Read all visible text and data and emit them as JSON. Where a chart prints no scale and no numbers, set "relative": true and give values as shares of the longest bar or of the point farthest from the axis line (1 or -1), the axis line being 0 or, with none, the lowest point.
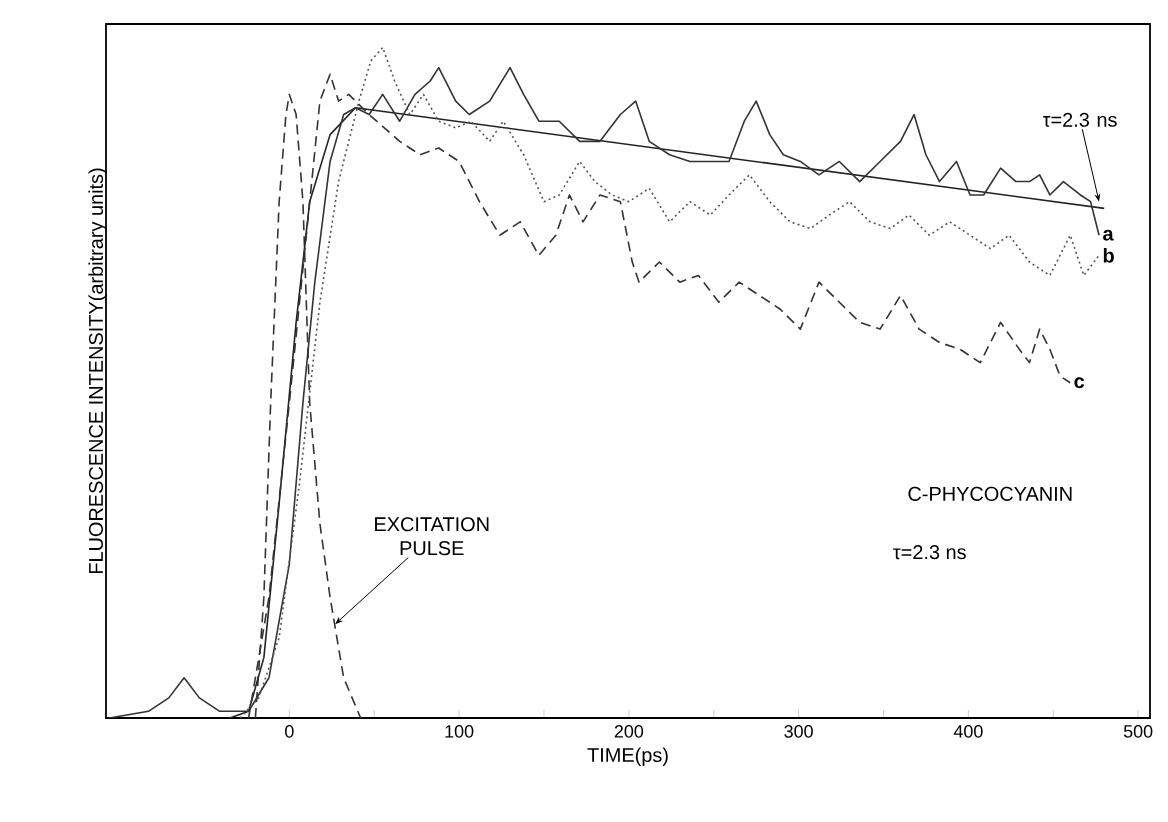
{
  "chart_data": {
    "type": "line",
    "relative": true,
    "xlabel": "TIME(ps)",
    "ylabel": "FLUORESCENCE INTENSITY(arbitrary units)",
    "xlim": [
      -108,
      507
    ],
    "xticks": [
      0,
      {
        "value": 50,
        "label": null
      },
      100,
      {
        "value": 150,
        "label": null
      },
      200,
      {
        "value": 250,
        "label": null
      },
      300,
      {
        "value": 350,
        "label": null
      },
      400,
      {
        "value": 450,
        "label": null
      },
      500
    ],
    "grid": false,
    "annotations": [
      {
        "text": "τ=2.3 ns",
        "x": 477,
        "y": 0.77
      },
      {
        "text": "EXCITATION PULSE",
        "x": 27,
        "y": 0.14
      },
      "C-PHYCOCYANIN",
      "τ=2.3 ns"
    ],
    "series": [
      {
        "color": "#333333",
        "line_style": "dashed",
        "x": [
          -20,
          -15,
          -11,
          -6,
          -2,
          0,
          4,
          8,
          12,
          18,
          24,
          32,
          42
        ],
        "values": [
          0,
          0.18,
          0.47,
          0.77,
          0.9,
          0.93,
          0.9,
          0.77,
          0.47,
          0.29,
          0.18,
          0.06,
          0
        ]
      },
      {
        "color": "#222222",
        "line_style": "solid",
        "x": [
          -35,
          -24,
          -15,
          -6,
          4,
          12,
          24,
          39,
          480
        ],
        "values": [
          0,
          0.01,
          0.09,
          0.32,
          0.59,
          0.77,
          0.87,
          0.91,
          0.76
        ]
      },
      {
        "name": "a",
        "color": "#333333",
        "line_style": "solid",
        "x": [
          -106,
          -83,
          -71,
          -62,
          -53,
          -41,
          -24,
          -12,
          0,
          8,
          15,
          24,
          32,
          39,
          47,
          55,
          65,
          74,
          83,
          88,
          98,
          106,
          118,
          130,
          138,
          147,
          159,
          171,
          183,
          195,
          204,
          212,
          224,
          236,
          248,
          259,
          268,
          275,
          283,
          291,
          301,
          312,
          324,
          336,
          348,
          360,
          368,
          375,
          383,
          393,
          401,
          409,
          419,
          428,
          436,
          442,
          448,
          456,
          466,
          472,
          477
        ],
        "values": [
          0,
          0.01,
          0.03,
          0.06,
          0.03,
          0.01,
          0.01,
          0.06,
          0.23,
          0.47,
          0.65,
          0.83,
          0.9,
          0.91,
          0.9,
          0.93,
          0.89,
          0.93,
          0.95,
          0.97,
          0.92,
          0.9,
          0.92,
          0.97,
          0.93,
          0.89,
          0.89,
          0.86,
          0.86,
          0.9,
          0.92,
          0.86,
          0.84,
          0.83,
          0.83,
          0.83,
          0.89,
          0.92,
          0.87,
          0.84,
          0.83,
          0.81,
          0.83,
          0.8,
          0.83,
          0.86,
          0.9,
          0.84,
          0.8,
          0.83,
          0.78,
          0.78,
          0.82,
          0.8,
          0.8,
          0.81,
          0.78,
          0.8,
          0.78,
          0.77,
          0.72
        ]
      },
      {
        "name": "b",
        "color": "#555555",
        "line_style": "dotted",
        "x": [
          -29,
          -18,
          -6,
          6,
          18,
          29,
          41,
          48,
          55,
          62,
          71,
          79,
          88,
          98,
          107,
          118,
          126,
          138,
          150,
          159,
          171,
          180,
          190,
          200,
          212,
          224,
          236,
          248,
          259,
          271,
          283,
          295,
          307,
          318,
          330,
          342,
          354,
          365,
          377,
          389,
          401,
          413,
          424,
          436,
          448,
          460,
          468,
          477
        ],
        "values": [
          0,
          0.03,
          0.12,
          0.35,
          0.62,
          0.8,
          0.92,
          0.98,
          1.0,
          0.95,
          0.9,
          0.93,
          0.89,
          0.88,
          0.89,
          0.86,
          0.89,
          0.84,
          0.77,
          0.78,
          0.83,
          0.8,
          0.78,
          0.77,
          0.79,
          0.74,
          0.77,
          0.75,
          0.78,
          0.81,
          0.77,
          0.74,
          0.73,
          0.75,
          0.77,
          0.74,
          0.73,
          0.75,
          0.72,
          0.74,
          0.72,
          0.7,
          0.72,
          0.68,
          0.66,
          0.72,
          0.66,
          0.69
        ]
      },
      {
        "name": "c",
        "color": "#333333",
        "line_style": "dashed",
        "x": [
          -24,
          -12,
          0,
          12,
          18,
          24,
          29,
          35,
          47,
          65,
          77,
          88,
          100,
          112,
          124,
          136,
          147,
          157,
          165,
          173,
          183,
          195,
          202,
          206,
          218,
          230,
          241,
          253,
          265,
          277,
          289,
          301,
          312,
          324,
          336,
          348,
          360,
          371,
          383,
          395,
          407,
          419,
          430,
          436,
          442,
          448,
          454,
          460
        ],
        "values": [
          0,
          0.18,
          0.47,
          0.77,
          0.92,
          0.96,
          0.92,
          0.93,
          0.9,
          0.86,
          0.84,
          0.85,
          0.83,
          0.77,
          0.72,
          0.74,
          0.69,
          0.72,
          0.78,
          0.74,
          0.78,
          0.77,
          0.68,
          0.65,
          0.68,
          0.65,
          0.66,
          0.62,
          0.65,
          0.63,
          0.61,
          0.58,
          0.65,
          0.62,
          0.59,
          0.58,
          0.63,
          0.58,
          0.56,
          0.55,
          0.53,
          0.59,
          0.55,
          0.53,
          0.58,
          0.55,
          0.51,
          0.5
        ]
      }
    ]
  }
}
